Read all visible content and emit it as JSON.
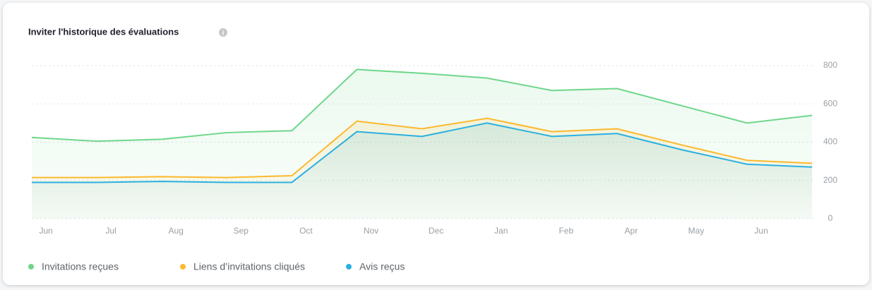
{
  "chart_data": {
    "type": "area-line",
    "title": "Inviter l'historique des évaluations",
    "categories": [
      "Jun",
      "Jul",
      "Aug",
      "Sep",
      "Oct",
      "Nov",
      "Dec",
      "Jan",
      "Feb",
      "Apr",
      "May",
      "Jun",
      null
    ],
    "series": [
      {
        "name": "Invitations reçues",
        "color": "#6fd68a",
        "values": [
          425,
          405,
          415,
          450,
          460,
          780,
          760,
          735,
          670,
          680,
          590,
          500,
          540
        ]
      },
      {
        "name": "Liens d’invitations cliqués",
        "color": "#fbb92e",
        "values": [
          215,
          215,
          220,
          215,
          225,
          510,
          470,
          525,
          455,
          470,
          385,
          305,
          290
        ]
      },
      {
        "name": "Avis reçus",
        "color": "#2bb0e0",
        "values": [
          190,
          190,
          195,
          190,
          190,
          455,
          430,
          500,
          430,
          445,
          360,
          285,
          270
        ]
      }
    ],
    "ylim": [
      0,
      800
    ],
    "yticks": [
      0,
      200,
      400,
      600,
      800
    ],
    "grid": true,
    "legend": "bottom"
  }
}
